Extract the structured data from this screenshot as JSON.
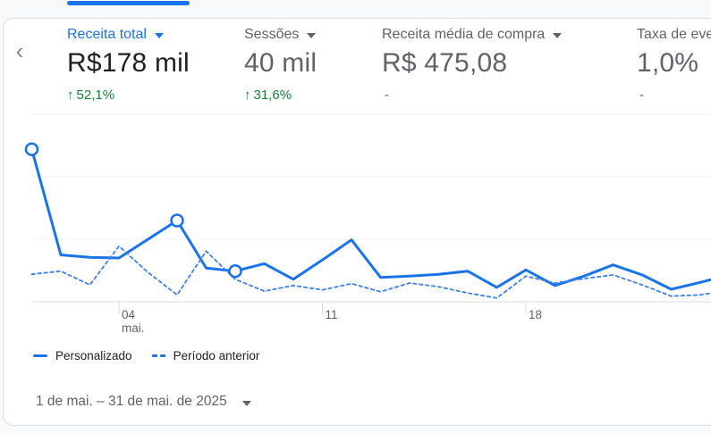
{
  "colors": {
    "accent": "#1a73e8",
    "dashed_line": "#4080e8",
    "positive": "#188038",
    "text_primary": "#202124",
    "text_secondary": "#5f6368",
    "grid": "#f0f1f3",
    "axis": "#e1e3e6",
    "tick": "#dadce0",
    "card_border": "#dadce0"
  },
  "nav": {
    "scroll_left_icon": "‹"
  },
  "metrics": [
    {
      "title": "Receita total",
      "value": "R$178 mil",
      "delta_arrow": "↑",
      "delta": "52,1%",
      "selected": true
    },
    {
      "title": "Sessões",
      "value": "40 mil",
      "delta_arrow": "↑",
      "delta": "31,6%",
      "selected": false
    },
    {
      "title": "Receita média de compra",
      "value": "R$ 475,08",
      "delta_arrow": "",
      "delta": "-",
      "selected": false
    },
    {
      "title": "Taxa de eve",
      "value": "1,0%",
      "delta_arrow": "",
      "delta": "-",
      "selected": false
    }
  ],
  "chart_data": {
    "type": "line",
    "x_label": "day of May 2025",
    "days": [
      1,
      2,
      3,
      4,
      5,
      6,
      7,
      8,
      9,
      10,
      11,
      12,
      13,
      14,
      15,
      16,
      17,
      18,
      19,
      20,
      21,
      22,
      23,
      24,
      25
    ],
    "series": [
      {
        "name": "Personalizado",
        "style": "solid",
        "values": [
          2.44,
          0.75,
          0.71,
          0.7,
          1.0,
          1.3,
          0.54,
          0.49,
          0.61,
          0.36,
          0.67,
          0.99,
          0.39,
          0.41,
          0.44,
          0.49,
          0.23,
          0.51,
          0.26,
          0.41,
          0.59,
          0.43,
          0.2,
          0.31,
          0.43
        ]
      },
      {
        "name": "Período anterior",
        "style": "dashed",
        "values": [
          0.44,
          0.49,
          0.27,
          0.89,
          0.47,
          0.11,
          0.81,
          0.36,
          0.17,
          0.26,
          0.19,
          0.29,
          0.16,
          0.3,
          0.24,
          0.14,
          0.06,
          0.41,
          0.3,
          0.37,
          0.43,
          0.27,
          0.09,
          0.11,
          0.19
        ]
      }
    ],
    "marker_days": [
      1,
      6,
      8
    ],
    "x_ticks": [
      {
        "day": 4,
        "label": "04",
        "sublabel": "mai."
      },
      {
        "day": 11,
        "label": "11",
        "sublabel": ""
      },
      {
        "day": 18,
        "label": "18",
        "sublabel": ""
      }
    ],
    "y_axis": {
      "labels_shown": false,
      "gridline_units": [
        1,
        2,
        3
      ],
      "ylim": [
        0,
        3
      ]
    },
    "legend_position": "bottom"
  },
  "legend": [
    {
      "label": "Personalizado",
      "style": "solid"
    },
    {
      "label": "Período anterior",
      "style": "dashed"
    }
  ],
  "date_range": {
    "label": "1 de mai. – 31 de mai. de 2025"
  }
}
